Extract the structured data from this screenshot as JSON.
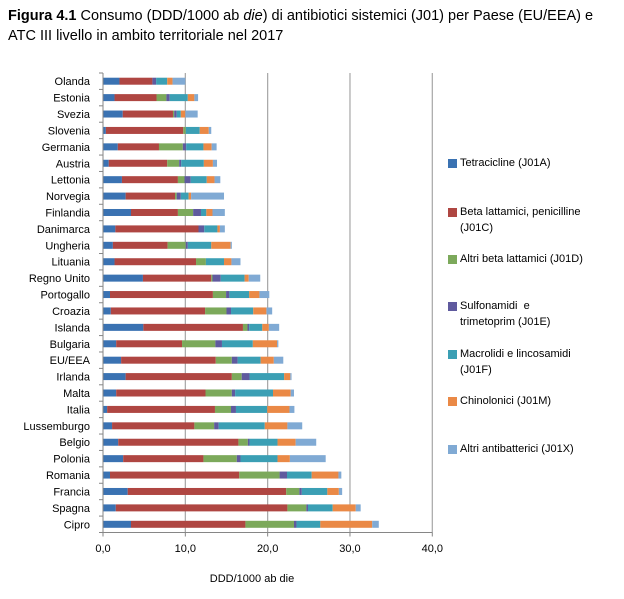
{
  "title": {
    "bold": "Figura 4.1",
    "part1": " Consumo (DDD/1000 ab ",
    "italic": "die",
    "part2": ") di antibiotici sistemici (J01) per Paese (EU/EEA) e ATC III livello in ambito territoriale nel 2017"
  },
  "chart_data": {
    "type": "bar",
    "orientation": "horizontal",
    "stacked": true,
    "title": "Figura 4.1 Consumo (DDD/1000 ab die) di antibiotici sistemici (J01) per Paese (EU/EEA) e ATC III livello in ambito territoriale nel 2017",
    "xlabel": "DDD/1000 ab die",
    "ylabel": "",
    "xlim": [
      0,
      40
    ],
    "xticks": [
      0,
      10,
      20,
      30,
      40
    ],
    "xtick_labels": [
      "0,0",
      "10,0",
      "20,0",
      "30,0",
      "40,0"
    ],
    "grid": "vertical",
    "legend_position": "right",
    "categories": [
      "Olanda",
      "Estonia",
      "Svezia",
      "Slovenia",
      "Germania",
      "Austria",
      "Lettonia",
      "Norvegia",
      "Finlandia",
      "Danimarca",
      "Ungheria",
      "Lituania",
      "Regno Unito",
      "Portogallo",
      "Croazia",
      "Islanda",
      "Bulgaria",
      "EU/EEA",
      "Irlanda",
      "Malta",
      "Italia",
      "Lussemburgo",
      "Belgio",
      "Polonia",
      "Romania",
      "Francia",
      "Spagna",
      "Cipro"
    ],
    "series": [
      {
        "name": "Tetracicline (J01A)",
        "legend_lines": [
          "Tetracicline (J01A)"
        ],
        "color": "#3A72B2",
        "values": [
          2.0,
          1.4,
          2.4,
          0.35,
          1.8,
          0.7,
          2.3,
          2.75,
          3.4,
          1.5,
          1.2,
          1.4,
          4.85,
          0.85,
          0.95,
          4.9,
          1.6,
          2.2,
          2.75,
          1.6,
          0.5,
          1.1,
          1.85,
          2.45,
          0.85,
          3.0,
          1.55,
          3.4
        ]
      },
      {
        "name": "Beta lattamici, penicilline (J01C)",
        "legend_lines": [
          "Beta lattamici, penicilline",
          "(J01C)"
        ],
        "color": "#AF4642",
        "values": [
          4.0,
          5.1,
          6.1,
          9.4,
          5.0,
          7.1,
          6.8,
          6.0,
          5.7,
          10.1,
          6.65,
          9.9,
          8.3,
          12.5,
          11.45,
          12.1,
          8.0,
          11.5,
          12.9,
          10.85,
          13.1,
          10.0,
          14.6,
          9.75,
          15.7,
          19.25,
          20.85,
          13.9
        ]
      },
      {
        "name": "Altri beta lattamici (J01D)",
        "legend_lines": [
          "Altri beta lattamici (J01D)"
        ],
        "color": "#7CA95B",
        "values": [
          0.0,
          1.2,
          0.15,
          0.3,
          2.9,
          1.45,
          0.8,
          0.2,
          1.85,
          0.0,
          2.2,
          1.2,
          0.15,
          1.6,
          2.6,
          0.55,
          4.05,
          1.95,
          1.2,
          3.2,
          1.95,
          2.4,
          1.15,
          4.05,
          4.9,
          1.6,
          2.3,
          5.9
        ]
      },
      {
        "name": "Sulfonamidi e trimetoprim (J01E)",
        "legend_lines": [
          "Sulfonamidi  e",
          "trimetoprim (J01E)"
        ],
        "color": "#5F5A9E",
        "values": [
          0.45,
          0.4,
          0.3,
          0.0,
          0.4,
          0.25,
          0.75,
          0.5,
          0.95,
          0.7,
          0.25,
          0.0,
          1.0,
          0.4,
          0.55,
          0.2,
          0.8,
          0.7,
          0.95,
          0.4,
          0.6,
          0.55,
          0.2,
          0.45,
          0.9,
          0.3,
          0.2,
          0.3
        ]
      },
      {
        "name": "Macrolidi e lincosamidi (J01F)",
        "legend_lines": [
          "Macrolidi e lincosamidi",
          "(J01F)"
        ],
        "color": "#3B9FB4",
        "values": [
          1.35,
          2.2,
          0.5,
          1.7,
          2.1,
          2.75,
          1.95,
          0.95,
          0.65,
          1.6,
          2.85,
          2.2,
          2.9,
          2.4,
          2.7,
          1.6,
          3.75,
          2.8,
          4.2,
          4.6,
          3.8,
          5.6,
          3.4,
          4.5,
          3.0,
          3.1,
          3.0,
          2.9
        ]
      },
      {
        "name": "Chinolonici (J01M)",
        "legend_lines": [
          "Chinolonici (J01M)"
        ],
        "color": "#EA8946",
        "values": [
          0.65,
          0.8,
          0.55,
          1.1,
          1.0,
          1.1,
          0.95,
          0.3,
          0.75,
          0.3,
          2.35,
          0.9,
          0.5,
          1.25,
          1.6,
          0.8,
          2.95,
          1.6,
          0.75,
          2.15,
          2.7,
          2.75,
          2.2,
          1.5,
          3.25,
          1.4,
          2.8,
          6.3
        ]
      },
      {
        "name": "Altri antibatterici (J01X)",
        "legend_lines": [
          "Altri antibatterici (J01X)"
        ],
        "color": "#80AAD4",
        "values": [
          1.55,
          0.45,
          1.5,
          0.3,
          0.6,
          0.5,
          0.7,
          4.0,
          1.5,
          0.6,
          0.15,
          1.1,
          1.4,
          1.2,
          0.7,
          1.25,
          0.15,
          1.15,
          0.15,
          0.4,
          0.6,
          1.8,
          2.5,
          4.35,
          0.35,
          0.4,
          0.6,
          0.8
        ]
      }
    ]
  },
  "colors": {
    "grid": "#A6A6A6",
    "axis": "#868686"
  }
}
